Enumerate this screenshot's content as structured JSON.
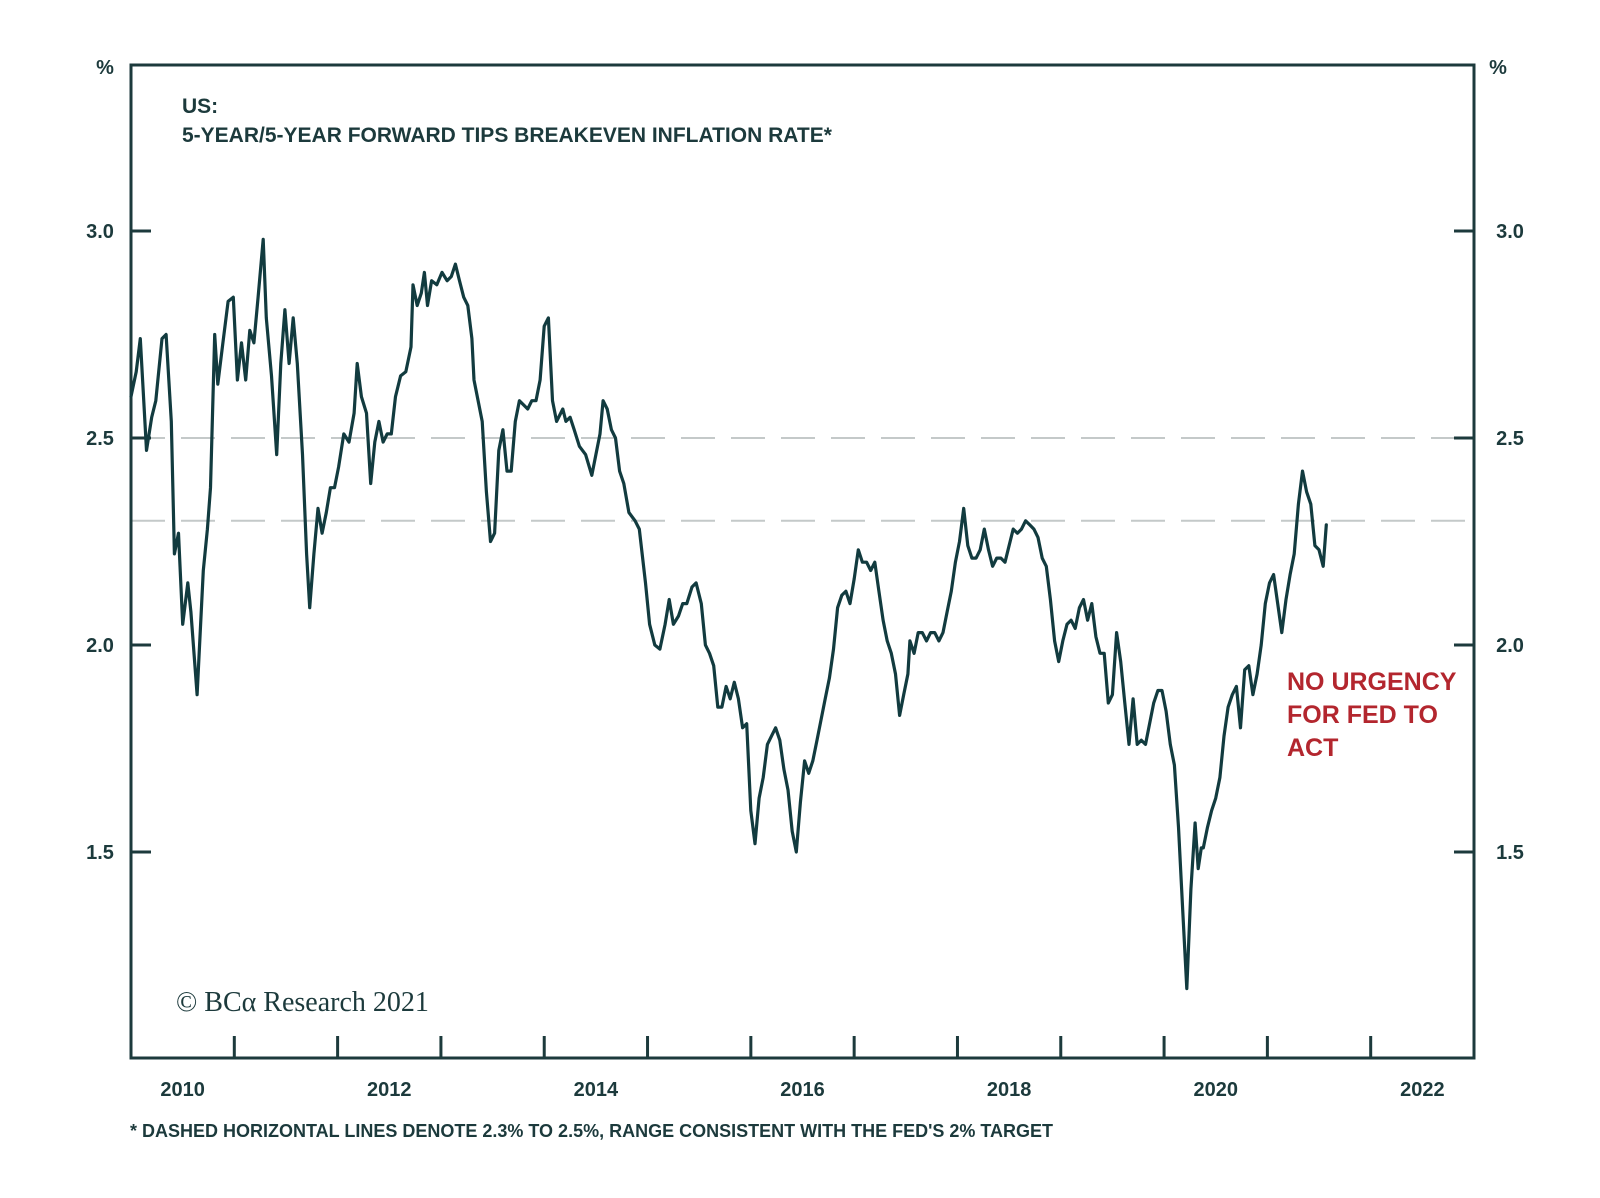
{
  "chart_data": {
    "type": "line",
    "title": "US:",
    "subtitle": "5-YEAR/5-YEAR FORWARD TIPS BREAKEVEN INFLATION RATE*",
    "ylabel_left": "%",
    "ylabel_right": "%",
    "xlabel": "",
    "xlim": [
      2010,
      2023
    ],
    "ylim": [
      1.0,
      3.4
    ],
    "yticks": [
      1.5,
      2.0,
      2.5,
      3.0
    ],
    "ytick_labels": [
      "1.5",
      "2.0",
      "2.5",
      "3.0"
    ],
    "xtick_years": [
      2011,
      2012,
      2013,
      2014,
      2015,
      2016,
      2017,
      2018,
      2019,
      2020,
      2021,
      2022
    ],
    "xtick_labels": [
      "2010",
      "2012",
      "2014",
      "2016",
      "2018",
      "2020",
      "2022"
    ],
    "grid": false,
    "reference_lines": [
      {
        "value": 2.3,
        "style": "dashed",
        "color": "#c4c9c9"
      },
      {
        "value": 2.5,
        "style": "dashed",
        "color": "#c4c9c9"
      }
    ],
    "annotation": {
      "lines": [
        "NO URGENCY",
        "FOR FED TO",
        "ACT"
      ],
      "color": "#b3262e"
    },
    "footnote": "* DASHED HORIZONTAL LINES DENOTE 2.3% TO 2.5%, RANGE CONSISTENT WITH THE FED'S 2% TARGET",
    "credit": "© BCα Research 2021",
    "series": [
      {
        "name": "5-Year/5-Year Forward TIPS Breakeven Inflation Rate",
        "color": "#123b3f",
        "x": [
          2010.0,
          2010.05,
          2010.09,
          2010.15,
          2010.2,
          2010.24,
          2010.3,
          2010.34,
          2010.39,
          2010.42,
          2010.46,
          2010.5,
          2010.55,
          2010.58,
          2010.64,
          2010.7,
          2010.74,
          2010.77,
          2010.81,
          2010.84,
          2010.89,
          2010.94,
          2010.99,
          2011.03,
          2011.07,
          2011.11,
          2011.15,
          2011.19,
          2011.23,
          2011.28,
          2011.31,
          2011.36,
          2011.41,
          2011.45,
          2011.49,
          2011.53,
          2011.57,
          2011.61,
          2011.66,
          2011.7,
          2011.73,
          2011.77,
          2011.81,
          2011.85,
          2011.89,
          2011.93,
          2011.97,
          2012.01,
          2012.06,
          2012.11,
          2012.16,
          2012.19,
          2012.23,
          2012.28,
          2012.32,
          2012.36,
          2012.4,
          2012.44,
          2012.48,
          2012.52,
          2012.56,
          2012.61,
          2012.66,
          2012.71,
          2012.73,
          2012.77,
          2012.81,
          2012.84,
          2012.87,
          2012.91,
          2012.96,
          2013.01,
          2013.06,
          2013.1,
          2013.14,
          2013.18,
          2013.22,
          2013.26,
          2013.3,
          2013.32,
          2013.36,
          2013.4,
          2013.44,
          2013.48,
          2013.52,
          2013.56,
          2013.6,
          2013.64,
          2013.68,
          2013.72,
          2013.76,
          2013.8,
          2013.84,
          2013.88,
          2013.92,
          2013.96,
          2014.0,
          2014.04,
          2014.08,
          2014.12,
          2014.18,
          2014.21,
          2014.25,
          2014.29,
          2014.34,
          2014.4,
          2014.46,
          2014.5,
          2014.54,
          2014.57,
          2014.61,
          2014.65,
          2014.69,
          2014.73,
          2014.77,
          2014.82,
          2014.88,
          2014.92,
          2014.98,
          2015.02,
          2015.07,
          2015.12,
          2015.17,
          2015.21,
          2015.25,
          2015.3,
          2015.34,
          2015.38,
          2015.43,
          2015.47,
          2015.52,
          2015.56,
          2015.6,
          2015.64,
          2015.68,
          2015.72,
          2015.76,
          2015.8,
          2015.84,
          2015.88,
          2015.92,
          2015.96,
          2016.0,
          2016.04,
          2016.08,
          2016.12,
          2016.16,
          2016.2,
          2016.24,
          2016.28,
          2016.32,
          2016.36,
          2016.4,
          2016.44,
          2016.48,
          2016.52,
          2016.56,
          2016.6,
          2016.64,
          2016.68,
          2016.72,
          2016.76,
          2016.8,
          2016.84,
          2016.88,
          2016.92,
          2016.96,
          2017.0,
          2017.04,
          2017.08,
          2017.12,
          2017.16,
          2017.2,
          2017.24,
          2017.28,
          2017.32,
          2017.36,
          2017.4,
          2017.44,
          2017.48,
          2017.52,
          2017.54,
          2017.58,
          2017.62,
          2017.66,
          2017.7,
          2017.74,
          2017.78,
          2017.82,
          2017.86,
          2017.9,
          2017.94,
          2017.98,
          2018.02,
          2018.06,
          2018.1,
          2018.14,
          2018.18,
          2018.22,
          2018.26,
          2018.3,
          2018.34,
          2018.38,
          2018.42,
          2018.46,
          2018.5,
          2018.54,
          2018.58,
          2018.62,
          2018.66,
          2018.7,
          2018.74,
          2018.78,
          2018.82,
          2018.86,
          2018.9,
          2018.94,
          2018.98,
          2019.02,
          2019.06,
          2019.1,
          2019.14,
          2019.18,
          2019.22,
          2019.26,
          2019.3,
          2019.34,
          2019.38,
          2019.42,
          2019.46,
          2019.5,
          2019.54,
          2019.58,
          2019.62,
          2019.66,
          2019.7,
          2019.74,
          2019.78,
          2019.82,
          2019.86,
          2019.9,
          2019.94,
          2019.98,
          2020.02,
          2020.06,
          2020.1,
          2020.14,
          2020.18,
          2020.22,
          2020.26,
          2020.3,
          2020.33,
          2020.36,
          2020.38,
          2020.42,
          2020.46,
          2020.5,
          2020.54,
          2020.58,
          2020.62,
          2020.66,
          2020.7,
          2020.74,
          2020.78,
          2020.82,
          2020.86,
          2020.9,
          2020.94,
          2020.98,
          2021.02,
          2021.06,
          2021.1,
          2021.14,
          2021.18,
          2021.22,
          2021.26,
          2021.3,
          2021.34,
          2021.38,
          2021.42,
          2021.46,
          2021.5,
          2021.54,
          2021.57
        ],
        "values": [
          2.6,
          2.66,
          2.74,
          2.47,
          2.55,
          2.59,
          2.74,
          2.75,
          2.54,
          2.22,
          2.27,
          2.05,
          2.15,
          2.08,
          1.88,
          2.18,
          2.28,
          2.38,
          2.75,
          2.63,
          2.73,
          2.83,
          2.84,
          2.64,
          2.73,
          2.64,
          2.76,
          2.73,
          2.84,
          2.98,
          2.79,
          2.65,
          2.46,
          2.68,
          2.81,
          2.68,
          2.79,
          2.68,
          2.46,
          2.22,
          2.09,
          2.22,
          2.33,
          2.27,
          2.32,
          2.38,
          2.38,
          2.43,
          2.51,
          2.49,
          2.56,
          2.68,
          2.6,
          2.56,
          2.39,
          2.49,
          2.54,
          2.49,
          2.51,
          2.51,
          2.6,
          2.65,
          2.66,
          2.72,
          2.87,
          2.82,
          2.85,
          2.9,
          2.82,
          2.88,
          2.87,
          2.9,
          2.88,
          2.89,
          2.92,
          2.88,
          2.84,
          2.82,
          2.74,
          2.64,
          2.59,
          2.54,
          2.37,
          2.25,
          2.27,
          2.47,
          2.52,
          2.42,
          2.42,
          2.54,
          2.59,
          2.58,
          2.57,
          2.59,
          2.59,
          2.64,
          2.77,
          2.79,
          2.59,
          2.54,
          2.57,
          2.54,
          2.55,
          2.52,
          2.48,
          2.46,
          2.41,
          2.46,
          2.51,
          2.59,
          2.57,
          2.52,
          2.5,
          2.42,
          2.39,
          2.32,
          2.3,
          2.28,
          2.15,
          2.05,
          2.0,
          1.99,
          2.05,
          2.11,
          2.05,
          2.07,
          2.1,
          2.1,
          2.14,
          2.15,
          2.1,
          2.0,
          1.98,
          1.95,
          1.85,
          1.85,
          1.9,
          1.87,
          1.91,
          1.87,
          1.8,
          1.81,
          1.6,
          1.52,
          1.63,
          1.68,
          1.76,
          1.78,
          1.8,
          1.77,
          1.7,
          1.65,
          1.55,
          1.5,
          1.62,
          1.72,
          1.69,
          1.72,
          1.77,
          1.82,
          1.87,
          1.92,
          1.99,
          2.09,
          2.12,
          2.13,
          2.1,
          2.16,
          2.23,
          2.2,
          2.2,
          2.18,
          2.2,
          2.13,
          2.06,
          2.01,
          1.98,
          1.93,
          1.83,
          1.88,
          1.93,
          2.01,
          1.98,
          2.03,
          2.03,
          2.01,
          2.03,
          2.03,
          2.01,
          2.03,
          2.08,
          2.13,
          2.2,
          2.25,
          2.33,
          2.24,
          2.21,
          2.21,
          2.23,
          2.28,
          2.23,
          2.19,
          2.21,
          2.21,
          2.2,
          2.24,
          2.28,
          2.27,
          2.28,
          2.3,
          2.29,
          2.28,
          2.26,
          2.21,
          2.19,
          2.11,
          2.01,
          1.96,
          2.01,
          2.05,
          2.06,
          2.04,
          2.09,
          2.11,
          2.06,
          2.1,
          2.02,
          1.98,
          1.98,
          1.86,
          1.88,
          2.03,
          1.96,
          1.86,
          1.76,
          1.87,
          1.76,
          1.77,
          1.76,
          1.81,
          1.86,
          1.89,
          1.89,
          1.84,
          1.76,
          1.71,
          1.56,
          1.36,
          1.17,
          1.41,
          1.57,
          1.46,
          1.51,
          1.51,
          1.56,
          1.6,
          1.63,
          1.68,
          1.78,
          1.85,
          1.88,
          1.9,
          1.8,
          1.94,
          1.95,
          1.88,
          1.93,
          2.0,
          2.1,
          2.15,
          2.17,
          2.1,
          2.03,
          2.11,
          2.17,
          2.22,
          2.34,
          2.42,
          2.37,
          2.34,
          2.24,
          2.23,
          2.19,
          2.29
        ]
      }
    ]
  }
}
